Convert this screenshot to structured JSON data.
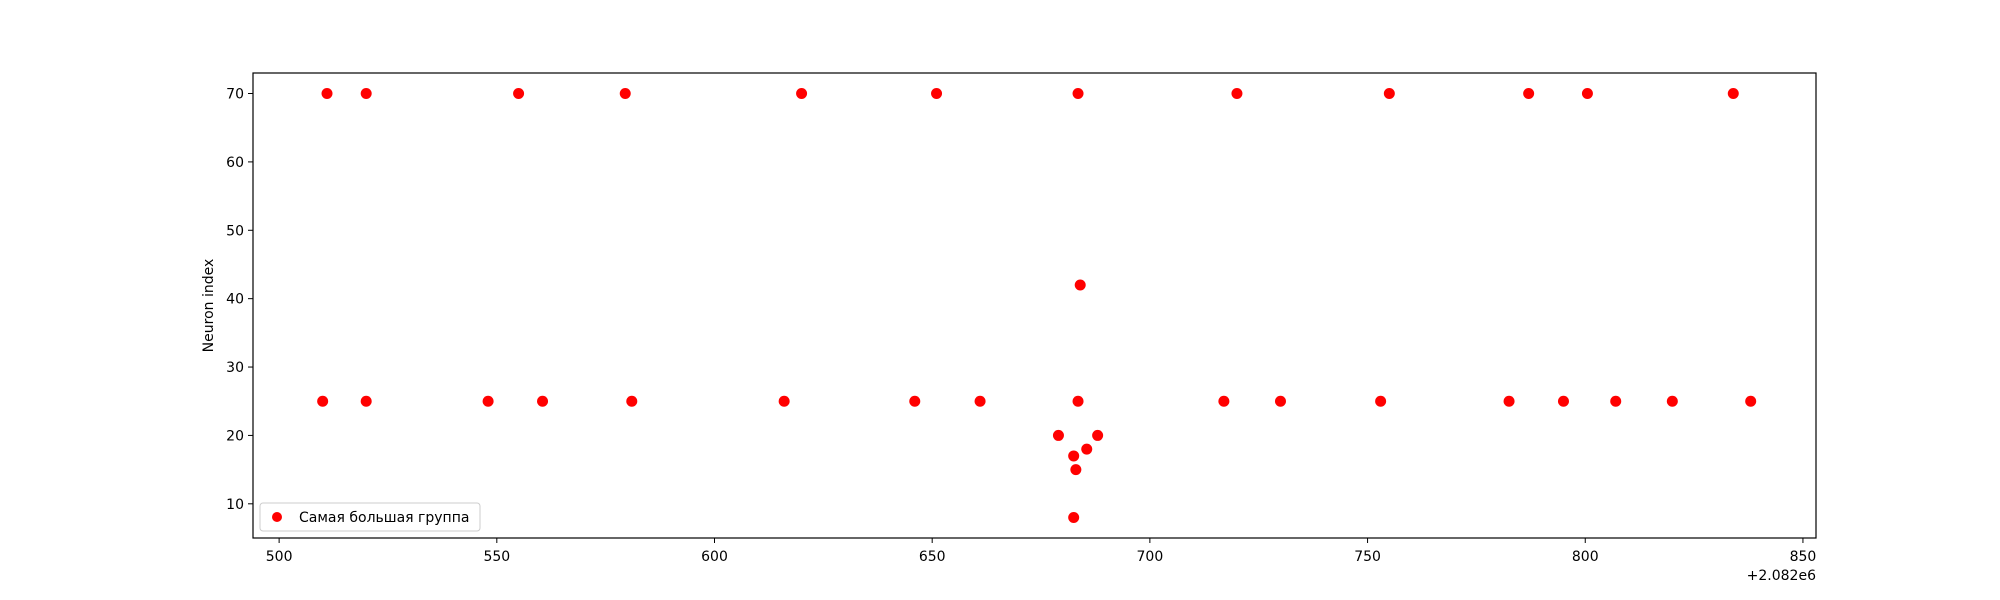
{
  "chart_data": {
    "type": "scatter",
    "title": "",
    "xlabel": "",
    "ylabel": "Neuron index",
    "x_offset_label": "+2.082e6",
    "xlim": [
      494,
      853
    ],
    "ylim": [
      5,
      73
    ],
    "xticks": [
      500,
      550,
      600,
      650,
      700,
      750,
      800,
      850
    ],
    "yticks": [
      10,
      20,
      30,
      40,
      50,
      60,
      70
    ],
    "grid": false,
    "legend_position": "lower-left",
    "series": [
      {
        "name": "Самая большая группа",
        "color": "#ff0000",
        "points": [
          {
            "x": 511,
            "y": 70
          },
          {
            "x": 520,
            "y": 70
          },
          {
            "x": 555,
            "y": 70
          },
          {
            "x": 579.5,
            "y": 70
          },
          {
            "x": 620,
            "y": 70
          },
          {
            "x": 651,
            "y": 70
          },
          {
            "x": 683.5,
            "y": 70
          },
          {
            "x": 720,
            "y": 70
          },
          {
            "x": 755,
            "y": 70
          },
          {
            "x": 787,
            "y": 70
          },
          {
            "x": 800.5,
            "y": 70
          },
          {
            "x": 834,
            "y": 70
          },
          {
            "x": 684,
            "y": 42
          },
          {
            "x": 510,
            "y": 25
          },
          {
            "x": 520,
            "y": 25
          },
          {
            "x": 548,
            "y": 25
          },
          {
            "x": 560.5,
            "y": 25
          },
          {
            "x": 581,
            "y": 25
          },
          {
            "x": 616,
            "y": 25
          },
          {
            "x": 646,
            "y": 25
          },
          {
            "x": 661,
            "y": 25
          },
          {
            "x": 683.5,
            "y": 25
          },
          {
            "x": 717,
            "y": 25
          },
          {
            "x": 730,
            "y": 25
          },
          {
            "x": 753,
            "y": 25
          },
          {
            "x": 782.5,
            "y": 25
          },
          {
            "x": 795,
            "y": 25
          },
          {
            "x": 807,
            "y": 25
          },
          {
            "x": 820,
            "y": 25
          },
          {
            "x": 838,
            "y": 25
          },
          {
            "x": 679,
            "y": 20
          },
          {
            "x": 688,
            "y": 20
          },
          {
            "x": 685.5,
            "y": 18
          },
          {
            "x": 682.5,
            "y": 17
          },
          {
            "x": 683,
            "y": 15
          },
          {
            "x": 682.5,
            "y": 8
          }
        ]
      }
    ]
  }
}
